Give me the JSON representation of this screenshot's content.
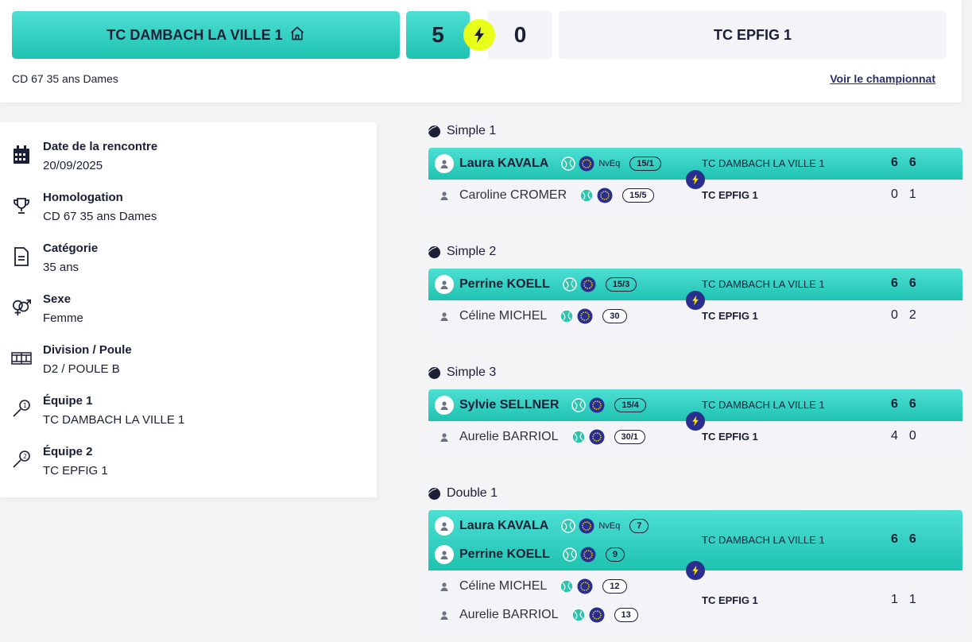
{
  "header": {
    "home_team": "TC DAMBACH LA VILLE 1",
    "away_team": "TC EPFIG 1",
    "home_score": "5",
    "away_score": "0",
    "championship": "CD 67 35 ans Dames",
    "championship_link": "Voir le championnat"
  },
  "info": {
    "date_label": "Date de la rencontre",
    "date_value": "20/09/2025",
    "homologation_label": "Homologation",
    "homologation_value": "CD 67 35 ans Dames",
    "category_label": "Catégorie",
    "category_value": "35 ans",
    "sex_label": "Sexe",
    "sex_value": "Femme",
    "division_label": "Division / Poule",
    "division_value": "D2 / POULE B",
    "team1_label": "Équipe 1",
    "team1_value": "TC DAMBACH LA VILLE 1",
    "team2_label": "Équipe 2",
    "team2_value": "TC EPFIG 1"
  },
  "matches": [
    {
      "title": "Simple 1",
      "winner": {
        "players": [
          {
            "name": "Laura KAVALA",
            "nveq": "NvEq",
            "rank": "15/1"
          }
        ],
        "club": "TC DAMBACH LA VILLE 1",
        "sets": [
          "6",
          "6"
        ]
      },
      "loser": {
        "players": [
          {
            "name": "Caroline CROMER",
            "nveq": "",
            "rank": "15/5"
          }
        ],
        "club": "TC EPFIG 1",
        "sets": [
          "0",
          "1"
        ]
      }
    },
    {
      "title": "Simple 2",
      "winner": {
        "players": [
          {
            "name": "Perrine KOELL",
            "nveq": "",
            "rank": "15/3"
          }
        ],
        "club": "TC DAMBACH LA VILLE 1",
        "sets": [
          "6",
          "6"
        ]
      },
      "loser": {
        "players": [
          {
            "name": "Céline MICHEL",
            "nveq": "",
            "rank": "30"
          }
        ],
        "club": "TC EPFIG 1",
        "sets": [
          "0",
          "2"
        ]
      }
    },
    {
      "title": "Simple 3",
      "winner": {
        "players": [
          {
            "name": "Sylvie SELLNER",
            "nveq": "",
            "rank": "15/4"
          }
        ],
        "club": "TC DAMBACH LA VILLE 1",
        "sets": [
          "6",
          "6"
        ]
      },
      "loser": {
        "players": [
          {
            "name": "Aurelie BARRIOL",
            "nveq": "",
            "rank": "30/1"
          }
        ],
        "club": "TC EPFIG 1",
        "sets": [
          "4",
          "0"
        ]
      }
    },
    {
      "title": "Double 1",
      "winner": {
        "players": [
          {
            "name": "Laura KAVALA",
            "nveq": "NvEq",
            "rank": "7"
          },
          {
            "name": "Perrine KOELL",
            "nveq": "",
            "rank": "9"
          }
        ],
        "club": "TC DAMBACH LA VILLE 1",
        "sets": [
          "6",
          "6"
        ]
      },
      "loser": {
        "players": [
          {
            "name": "Céline MICHEL",
            "nveq": "",
            "rank": "12"
          },
          {
            "name": "Aurelie BARRIOL",
            "nveq": "",
            "rank": "13"
          }
        ],
        "club": "TC EPFIG 1",
        "sets": [
          "1",
          "1"
        ]
      }
    }
  ]
}
